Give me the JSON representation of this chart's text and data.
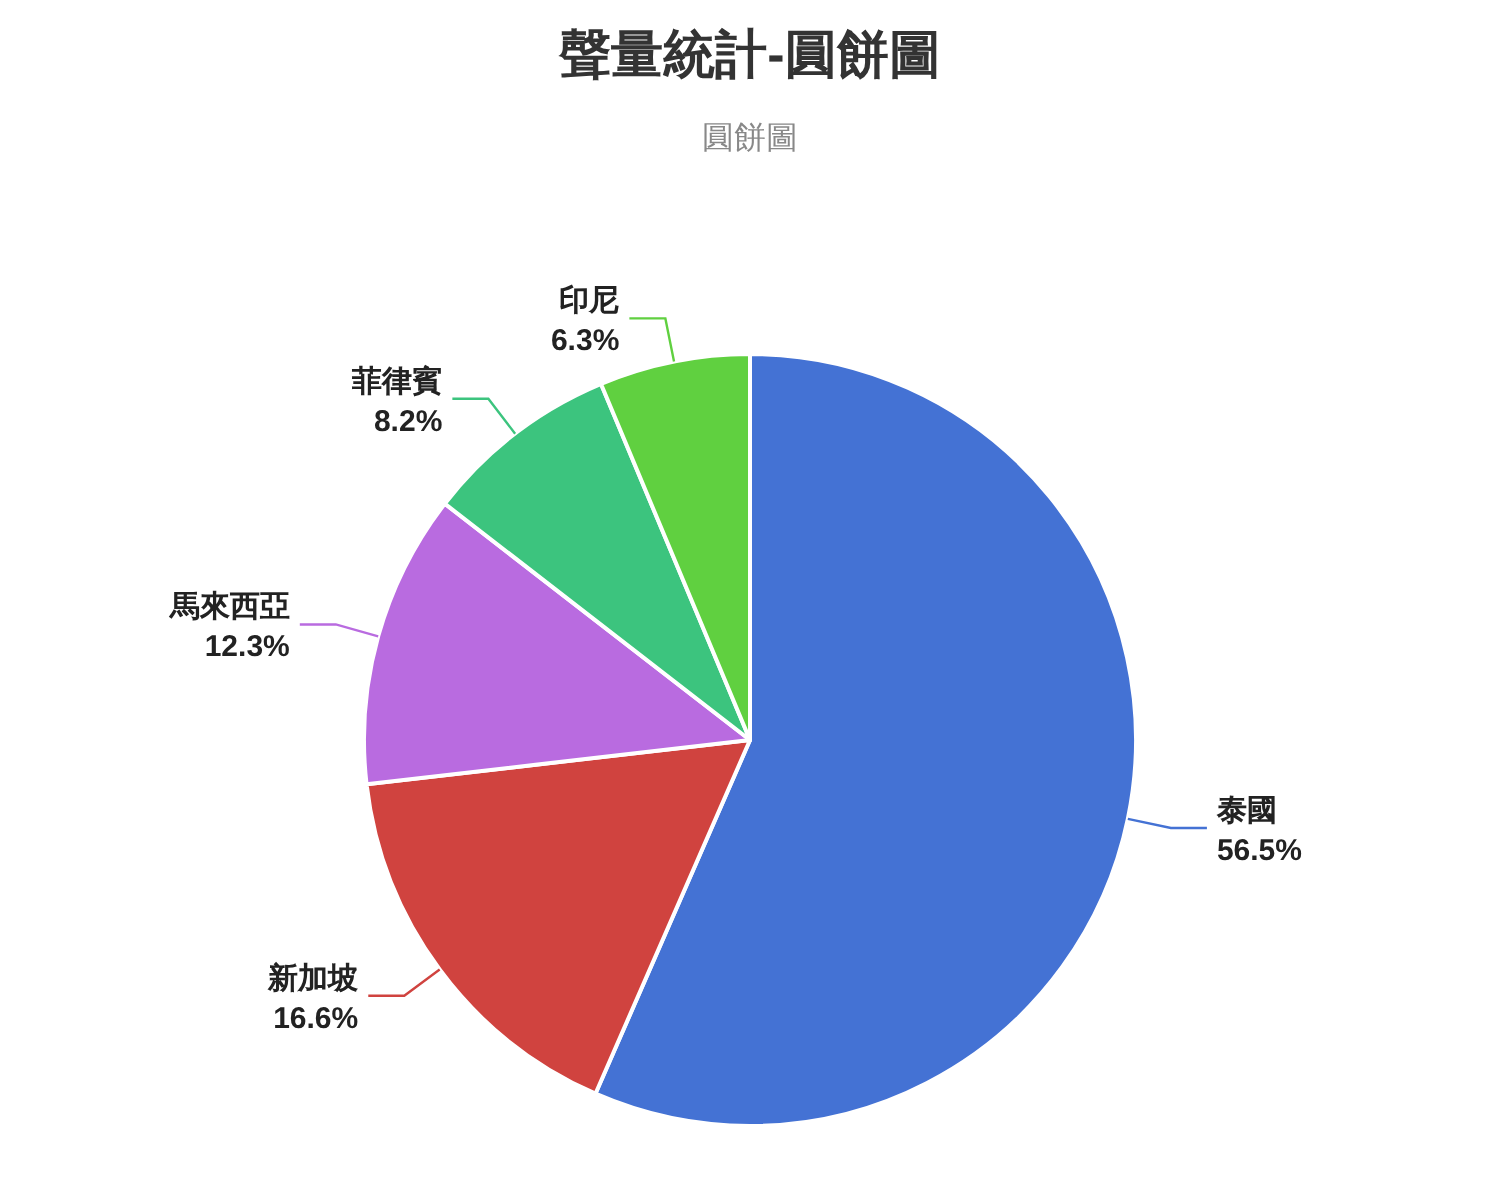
{
  "chart_data": {
    "type": "pie",
    "title": "聲量統計-圓餅圖",
    "subtitle": "圓餅圖",
    "categories": [
      "泰國",
      "新加坡",
      "馬來西亞",
      "菲律賓",
      "印尼"
    ],
    "values": [
      56.5,
      16.6,
      12.3,
      8.2,
      6.3
    ],
    "value_labels": [
      "56.5%",
      "16.6%",
      "12.3%",
      "8.2%",
      "6.3%"
    ],
    "colors": [
      "#4472d4",
      "#d0433f",
      "#b96be0",
      "#3cc47e",
      "#60d040"
    ],
    "legend": false
  }
}
